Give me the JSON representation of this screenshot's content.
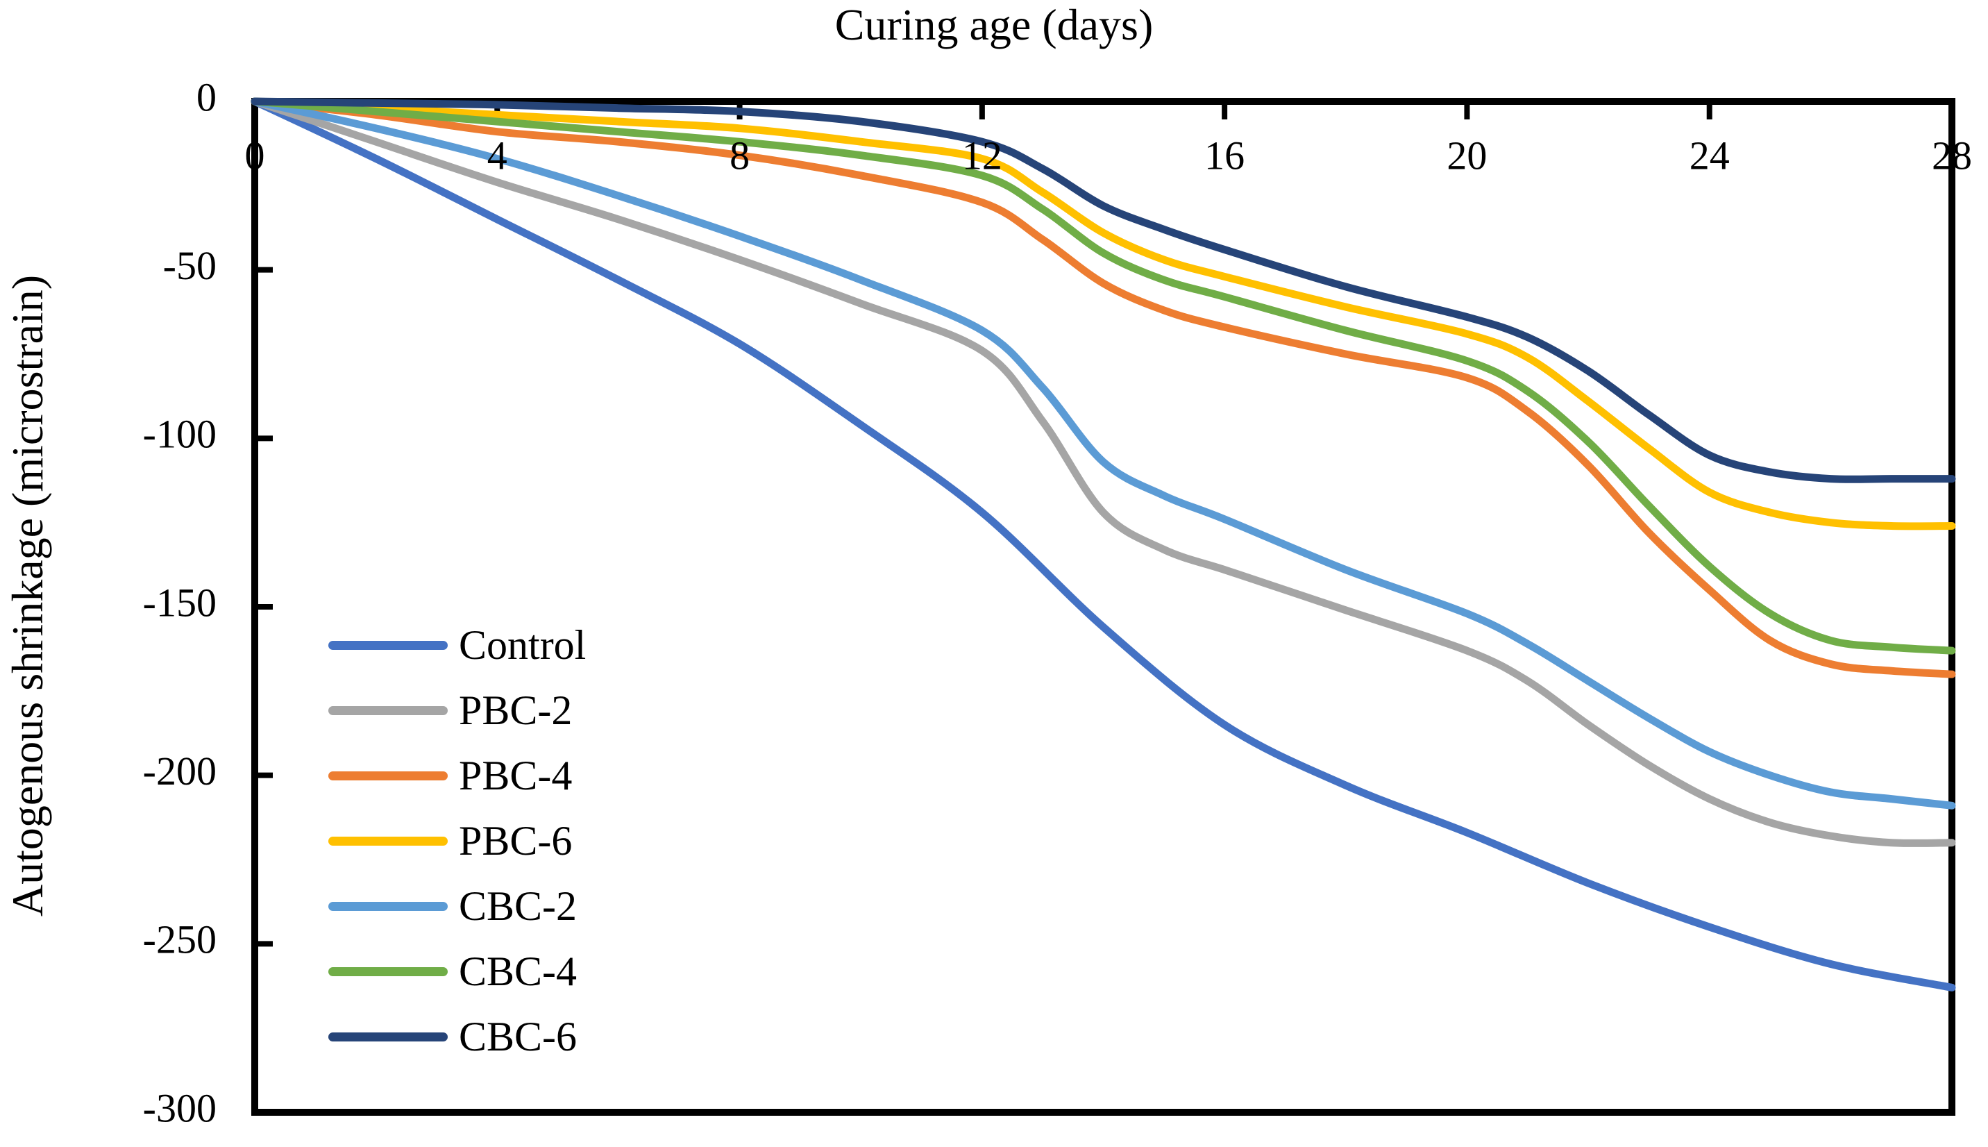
{
  "title": "Curing age (days)",
  "y_axis_title": "Autogenous shrinkage (microstrain)",
  "chart_data": {
    "type": "line",
    "x_axis_title": "Curing age (days)",
    "y_axis_title": "Autogenous shrinkage (microstrain)",
    "x_range": [
      0,
      28
    ],
    "y_range": [
      -300,
      0
    ],
    "x_ticks": [
      0,
      4,
      8,
      12,
      16,
      20,
      24,
      28
    ],
    "y_ticks": [
      0,
      -50,
      -100,
      -150,
      -200,
      -250,
      -300
    ],
    "grid": false,
    "legend_position": "inside-middle-left",
    "axis_color": "#000000",
    "line_width": 11,
    "series": [
      {
        "name": "Control",
        "color": "#4472C4",
        "x": [
          0,
          2,
          4,
          6,
          8,
          10,
          12,
          14,
          16,
          18,
          20,
          22,
          24,
          26,
          28
        ],
        "y": [
          0,
          -17,
          -35,
          -53,
          -72,
          -96,
          -122,
          -156,
          -185,
          -203,
          -217,
          -232,
          -245,
          -256,
          -263
        ]
      },
      {
        "name": "PBC-2",
        "color": "#A5A5A5",
        "x": [
          0,
          2,
          4,
          6,
          8,
          10,
          12,
          13,
          14,
          15,
          16,
          17,
          18,
          20,
          21,
          22,
          23,
          24,
          25,
          26,
          27,
          28
        ],
        "y": [
          0,
          -12,
          -24,
          -35,
          -47,
          -60,
          -74,
          -95,
          -122,
          -133,
          -139,
          -145,
          -151,
          -163,
          -172,
          -185,
          -197,
          -207,
          -214,
          -218,
          -220,
          -220
        ]
      },
      {
        "name": "PBC-4",
        "color": "#ED7D31",
        "x": [
          0,
          2,
          4,
          6,
          8,
          10,
          12,
          13,
          14,
          15,
          16,
          18,
          20,
          21,
          22,
          23,
          24,
          25,
          26,
          27,
          28
        ],
        "y": [
          0,
          -4,
          -9,
          -12,
          -16,
          -22,
          -30,
          -41,
          -54,
          -62,
          -67,
          -75,
          -82,
          -92,
          -108,
          -128,
          -145,
          -160,
          -167,
          -169,
          -170
        ]
      },
      {
        "name": "PBC-6",
        "color": "#FFC000",
        "x": [
          0,
          2,
          4,
          6,
          8,
          10,
          12,
          13,
          14,
          15,
          16,
          18,
          20,
          21,
          22,
          23,
          24,
          25,
          26,
          27,
          28
        ],
        "y": [
          0,
          -2,
          -4,
          -6,
          -8,
          -12,
          -17,
          -27,
          -39,
          -47,
          -52,
          -61,
          -69,
          -76,
          -89,
          -103,
          -116,
          -122,
          -125,
          -126,
          -126
        ]
      },
      {
        "name": "CBC-2",
        "color": "#5B9BD5",
        "x": [
          0,
          2,
          4,
          6,
          8,
          10,
          12,
          13,
          14,
          15,
          16,
          18,
          20,
          21,
          22,
          23,
          24,
          25,
          26,
          27,
          28
        ],
        "y": [
          0,
          -8,
          -17,
          -28,
          -40,
          -53,
          -68,
          -85,
          -107,
          -117,
          -124,
          -139,
          -152,
          -161,
          -172,
          -183,
          -193,
          -200,
          -205,
          -207,
          -209
        ]
      },
      {
        "name": "CBC-4",
        "color": "#70AD47",
        "x": [
          0,
          2,
          4,
          6,
          8,
          10,
          12,
          13,
          14,
          15,
          16,
          18,
          20,
          21,
          22,
          23,
          24,
          25,
          26,
          27,
          28
        ],
        "y": [
          0,
          -3,
          -6,
          -9,
          -12,
          -16,
          -22,
          -32,
          -45,
          -53,
          -58,
          -68,
          -77,
          -86,
          -101,
          -120,
          -138,
          -152,
          -160,
          -162,
          -163
        ]
      },
      {
        "name": "CBC-6",
        "color": "#264478",
        "x": [
          0,
          2,
          4,
          6,
          8,
          10,
          12,
          13,
          14,
          15,
          16,
          18,
          20,
          21,
          22,
          23,
          24,
          25,
          26,
          27,
          28
        ],
        "y": [
          0,
          -0.5,
          -1,
          -2,
          -3,
          -6,
          -12,
          -20,
          -31,
          -38,
          -44,
          -55,
          -64,
          -70,
          -80,
          -93,
          -105,
          -110,
          -112,
          -112,
          -112
        ]
      }
    ]
  }
}
